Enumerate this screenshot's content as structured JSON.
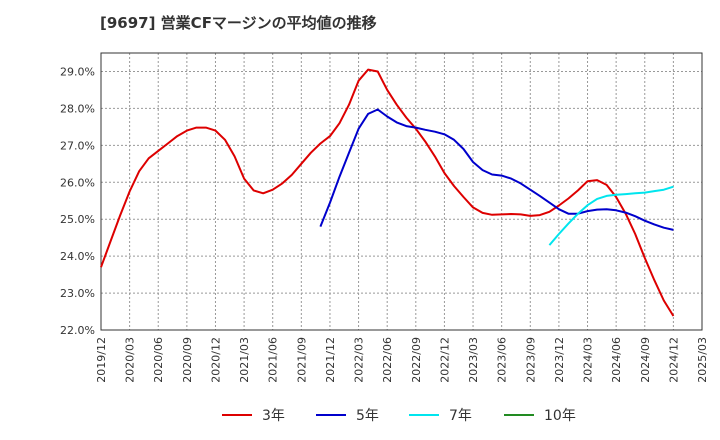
{
  "chart_data": {
    "type": "line",
    "title": "[9697]  営業CFマージンの平均値の推移",
    "xlabel": "",
    "ylabel": "",
    "ylim": [
      22.0,
      29.5
    ],
    "y_ticks": [
      "22.0%",
      "23.0%",
      "24.0%",
      "25.0%",
      "26.0%",
      "27.0%",
      "28.0%",
      "29.0%"
    ],
    "x_ticks": [
      "2019/12",
      "2020/03",
      "2020/06",
      "2020/09",
      "2020/12",
      "2021/03",
      "2021/06",
      "2021/09",
      "2021/12",
      "2022/03",
      "2022/06",
      "2022/09",
      "2022/12",
      "2023/03",
      "2023/06",
      "2023/09",
      "2023/12",
      "2024/03",
      "2024/06",
      "2024/09",
      "2024/12",
      "2025/03"
    ],
    "grid": true,
    "legend_position": "bottom",
    "series": [
      {
        "name": "3年",
        "color": "#dd0000",
        "points": [
          [
            "2019/12",
            23.7
          ],
          [
            "2020/01",
            24.4
          ],
          [
            "2020/02",
            25.1
          ],
          [
            "2020/03",
            25.75
          ],
          [
            "2020/04",
            26.3
          ],
          [
            "2020/05",
            26.65
          ],
          [
            "2020/06",
            26.85
          ],
          [
            "2020/07",
            27.05
          ],
          [
            "2020/08",
            27.25
          ],
          [
            "2020/09",
            27.4
          ],
          [
            "2020/10",
            27.48
          ],
          [
            "2020/11",
            27.48
          ],
          [
            "2020/12",
            27.4
          ],
          [
            "2021/01",
            27.15
          ],
          [
            "2021/02",
            26.7
          ],
          [
            "2021/03",
            26.1
          ],
          [
            "2021/04",
            25.78
          ],
          [
            "2021/05",
            25.7
          ],
          [
            "2021/06",
            25.8
          ],
          [
            "2021/07",
            25.97
          ],
          [
            "2021/08",
            26.2
          ],
          [
            "2021/09",
            26.5
          ],
          [
            "2021/10",
            26.8
          ],
          [
            "2021/11",
            27.05
          ],
          [
            "2021/12",
            27.25
          ],
          [
            "2022/01",
            27.6
          ],
          [
            "2022/02",
            28.1
          ],
          [
            "2022/03",
            28.75
          ],
          [
            "2022/04",
            29.05
          ],
          [
            "2022/05",
            29.0
          ],
          [
            "2022/06",
            28.5
          ],
          [
            "2022/07",
            28.1
          ],
          [
            "2022/08",
            27.75
          ],
          [
            "2022/09",
            27.45
          ],
          [
            "2022/10",
            27.1
          ],
          [
            "2022/11",
            26.7
          ],
          [
            "2022/12",
            26.25
          ],
          [
            "2023/01",
            25.9
          ],
          [
            "2023/02",
            25.6
          ],
          [
            "2023/03",
            25.32
          ],
          [
            "2023/04",
            25.17
          ],
          [
            "2023/05",
            25.12
          ],
          [
            "2023/06",
            25.13
          ],
          [
            "2023/07",
            25.14
          ],
          [
            "2023/08",
            25.13
          ],
          [
            "2023/09",
            25.09
          ],
          [
            "2023/10",
            25.11
          ],
          [
            "2023/11",
            25.2
          ],
          [
            "2023/12",
            25.37
          ],
          [
            "2024/01",
            25.56
          ],
          [
            "2024/02",
            25.78
          ],
          [
            "2024/03",
            26.03
          ],
          [
            "2024/04",
            26.06
          ],
          [
            "2024/05",
            25.93
          ],
          [
            "2024/06",
            25.6
          ],
          [
            "2024/07",
            25.15
          ],
          [
            "2024/08",
            24.6
          ],
          [
            "2024/09",
            23.95
          ],
          [
            "2024/10",
            23.35
          ],
          [
            "2024/11",
            22.8
          ],
          [
            "2024/12",
            22.38
          ]
        ]
      },
      {
        "name": "5年",
        "color": "#0000cc",
        "points": [
          [
            "2021/11",
            24.8
          ],
          [
            "2021/12",
            25.45
          ],
          [
            "2022/01",
            26.15
          ],
          [
            "2022/02",
            26.8
          ],
          [
            "2022/03",
            27.45
          ],
          [
            "2022/04",
            27.85
          ],
          [
            "2022/05",
            27.97
          ],
          [
            "2022/06",
            27.78
          ],
          [
            "2022/07",
            27.62
          ],
          [
            "2022/08",
            27.52
          ],
          [
            "2022/09",
            27.48
          ],
          [
            "2022/10",
            27.42
          ],
          [
            "2022/11",
            27.37
          ],
          [
            "2022/12",
            27.3
          ],
          [
            "2023/01",
            27.15
          ],
          [
            "2023/02",
            26.9
          ],
          [
            "2023/03",
            26.55
          ],
          [
            "2023/04",
            26.33
          ],
          [
            "2023/05",
            26.21
          ],
          [
            "2023/06",
            26.18
          ],
          [
            "2023/07",
            26.1
          ],
          [
            "2023/08",
            25.97
          ],
          [
            "2023/09",
            25.8
          ],
          [
            "2023/10",
            25.63
          ],
          [
            "2023/11",
            25.45
          ],
          [
            "2023/12",
            25.27
          ],
          [
            "2024/01",
            25.15
          ],
          [
            "2024/02",
            25.15
          ],
          [
            "2024/03",
            25.22
          ],
          [
            "2024/04",
            25.26
          ],
          [
            "2024/05",
            25.27
          ],
          [
            "2024/06",
            25.24
          ],
          [
            "2024/07",
            25.18
          ],
          [
            "2024/08",
            25.08
          ],
          [
            "2024/09",
            24.96
          ],
          [
            "2024/10",
            24.86
          ],
          [
            "2024/11",
            24.77
          ],
          [
            "2024/12",
            24.71
          ]
        ]
      },
      {
        "name": "7年",
        "color": "#00e5ee",
        "points": [
          [
            "2023/11",
            24.3
          ],
          [
            "2023/12",
            24.6
          ],
          [
            "2024/01",
            24.88
          ],
          [
            "2024/02",
            25.15
          ],
          [
            "2024/03",
            25.38
          ],
          [
            "2024/04",
            25.55
          ],
          [
            "2024/05",
            25.63
          ],
          [
            "2024/06",
            25.66
          ],
          [
            "2024/07",
            25.68
          ],
          [
            "2024/08",
            25.7
          ],
          [
            "2024/09",
            25.72
          ],
          [
            "2024/10",
            25.76
          ],
          [
            "2024/11",
            25.8
          ],
          [
            "2024/12",
            25.88
          ]
        ]
      },
      {
        "name": "10年",
        "color": "#228b22",
        "points": []
      }
    ]
  }
}
